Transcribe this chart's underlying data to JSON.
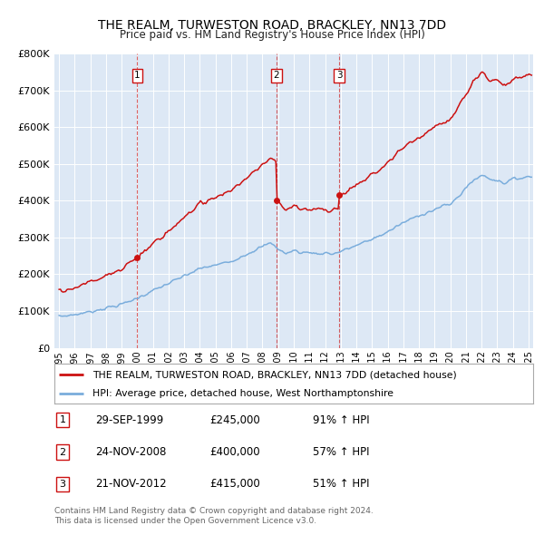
{
  "title": "THE REALM, TURWESTON ROAD, BRACKLEY, NN13 7DD",
  "subtitle": "Price paid vs. HM Land Registry's House Price Index (HPI)",
  "purchases": [
    {
      "label": "1",
      "date_str": "29-SEP-1999",
      "price": 245000,
      "price_str": "£245,000",
      "pct": "91%",
      "dir": "↑",
      "t": 2000.0
    },
    {
      "label": "2",
      "date_str": "24-NOV-2008",
      "price": 400000,
      "price_str": "£400,000",
      "pct": "57%",
      "dir": "↑",
      "t": 2008.9
    },
    {
      "label": "3",
      "date_str": "21-NOV-2012",
      "price": 415000,
      "price_str": "£415,000",
      "pct": "51%",
      "dir": "↑",
      "t": 2012.9
    }
  ],
  "legend_line1": "THE REALM, TURWESTON ROAD, BRACKLEY, NN13 7DD (detached house)",
  "legend_line2": "HPI: Average price, detached house, West Northamptonshire",
  "footer1": "Contains HM Land Registry data © Crown copyright and database right 2024.",
  "footer2": "This data is licensed under the Open Government Licence v3.0.",
  "property_color": "#cc1111",
  "hpi_color": "#7aaddc",
  "background_color": "#dde8f5",
  "ylim": [
    0,
    800000
  ],
  "yticks": [
    0,
    100000,
    200000,
    300000,
    400000,
    500000,
    600000,
    700000,
    800000
  ],
  "xmin": 1994.7,
  "xmax": 2025.3
}
